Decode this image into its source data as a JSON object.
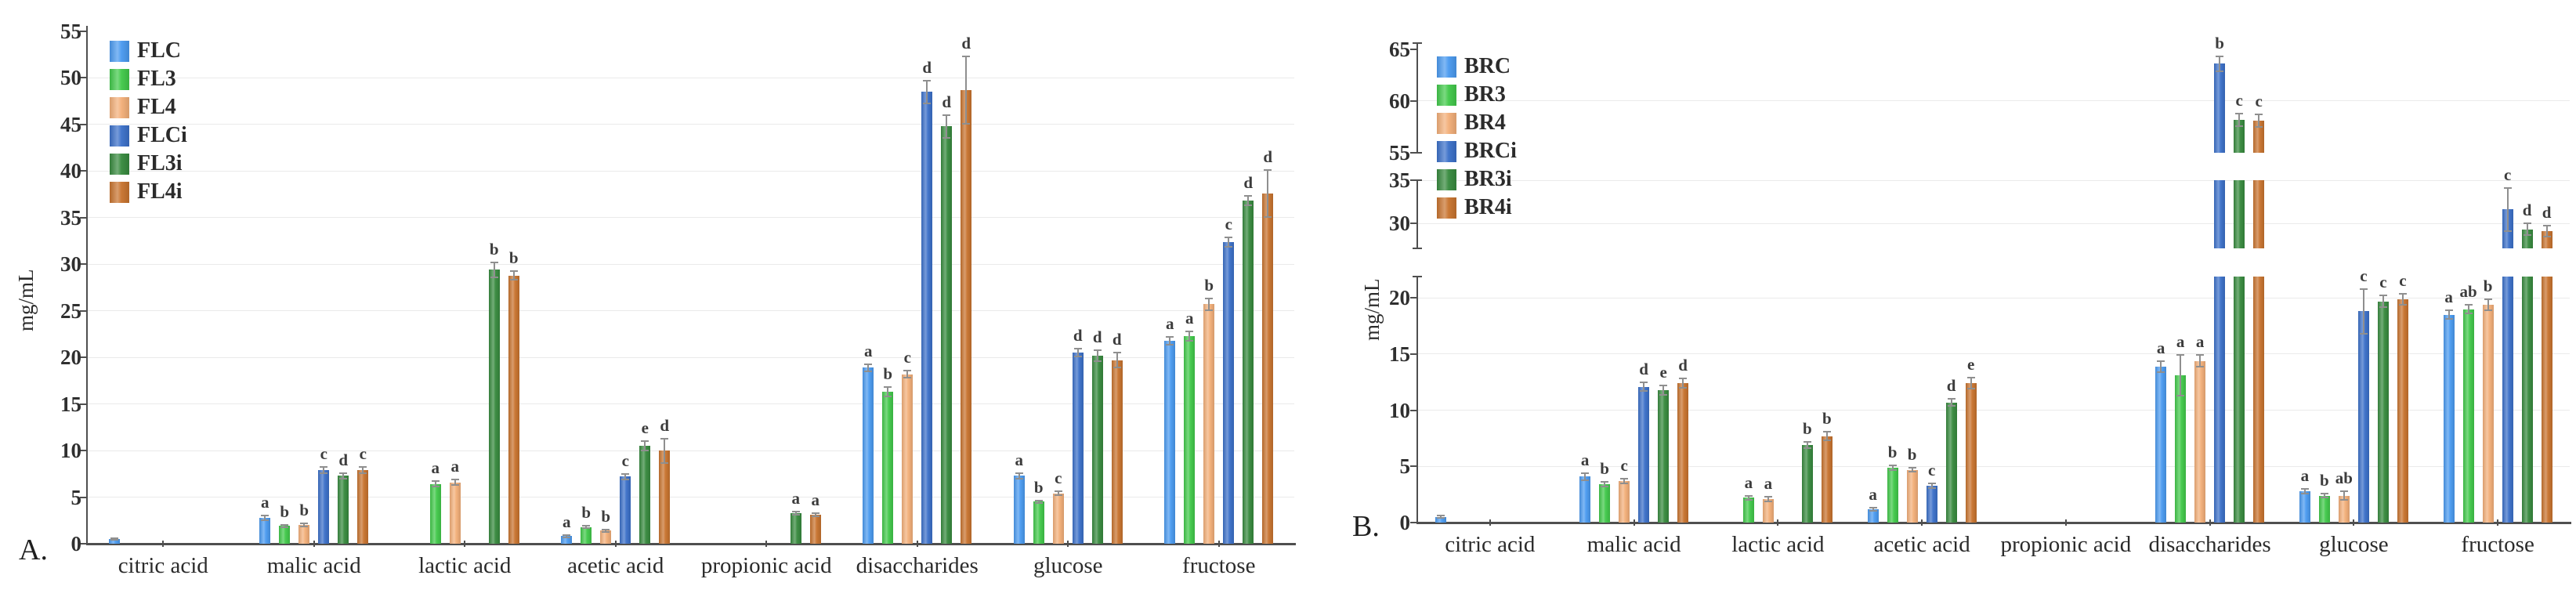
{
  "figure": {
    "background": "#ffffff",
    "ylabel": "mg/mL"
  },
  "chart_data": [
    {
      "type": "bar",
      "panel_label": "A.",
      "ylabel": "mg/mL",
      "legend_position": "top-left",
      "grid": true,
      "categories": [
        "citric acid",
        "malic acid",
        "lactic acid",
        "acetic acid",
        "propionic acid",
        "disaccharides",
        "glucose",
        "fructose"
      ],
      "axis": {
        "unit": "mg/mL",
        "ticks": [
          0,
          5,
          10,
          15,
          20,
          25,
          30,
          35,
          40,
          45,
          50,
          55
        ],
        "gridlines": [
          5,
          10,
          15,
          20,
          25,
          30,
          35,
          40,
          45,
          50
        ],
        "segments": [
          {
            "from": 0,
            "to": 55
          }
        ]
      },
      "series": [
        {
          "name": "FLC",
          "color": "#4a9af0",
          "values": [
            0.5,
            2.8,
            0,
            0.8,
            0,
            18.9,
            7.3,
            21.8
          ],
          "errors": [
            0.1,
            0.25,
            0,
            0.1,
            0,
            0.4,
            0.3,
            0.4
          ],
          "sig_labels": [
            "",
            "a",
            "",
            "a",
            "",
            "a",
            "a",
            "a"
          ]
        },
        {
          "name": "FL3",
          "color": "#41c94a",
          "values": [
            0,
            1.9,
            6.4,
            1.8,
            0,
            16.3,
            4.5,
            22.3
          ],
          "errors": [
            0,
            0.15,
            0.3,
            0.15,
            0,
            0.5,
            0.15,
            0.5
          ],
          "sig_labels": [
            "",
            "b",
            "a",
            "b",
            "",
            "b",
            "b",
            "a"
          ]
        },
        {
          "name": "FL4",
          "color": "#f3af79",
          "values": [
            0,
            2.0,
            6.6,
            1.4,
            0,
            18.2,
            5.4,
            25.7
          ],
          "errors": [
            0,
            0.15,
            0.3,
            0.15,
            0,
            0.4,
            0.2,
            0.6
          ],
          "sig_labels": [
            "",
            "b",
            "a",
            "b",
            "",
            "c",
            "c",
            "b"
          ]
        },
        {
          "name": "FLCi",
          "color": "#3b70c9",
          "values": [
            0,
            7.9,
            0,
            7.2,
            0,
            48.5,
            20.5,
            32.4
          ],
          "errors": [
            0,
            0.3,
            0,
            0.3,
            0,
            1.2,
            0.4,
            0.5
          ],
          "sig_labels": [
            "",
            "c",
            "",
            "c",
            "",
            "d",
            "d",
            "c"
          ]
        },
        {
          "name": "FL3i",
          "color": "#378a3e",
          "values": [
            0,
            7.3,
            29.4,
            10.5,
            3.3,
            44.8,
            20.2,
            36.8
          ],
          "errors": [
            0,
            0.3,
            0.8,
            0.5,
            0.15,
            1.2,
            0.6,
            0.5
          ],
          "sig_labels": [
            "",
            "d",
            "b",
            "e",
            "a",
            "d",
            "d",
            "d"
          ]
        },
        {
          "name": "FL4i",
          "color": "#c8732e",
          "values": [
            0,
            7.9,
            28.8,
            10.0,
            3.1,
            48.7,
            19.7,
            37.6
          ],
          "errors": [
            0,
            0.3,
            0.5,
            1.3,
            0.15,
            3.6,
            0.8,
            2.5
          ],
          "sig_labels": [
            "",
            "c",
            "b",
            "d",
            "a",
            "d",
            "d",
            "d"
          ]
        }
      ]
    },
    {
      "type": "bar",
      "panel_label": "B.",
      "ylabel": "mg/mL",
      "legend_position": "top-left",
      "grid": true,
      "axis_breaks": [
        [
          22,
          27
        ],
        [
          35,
          55
        ]
      ],
      "categories": [
        "citric acid",
        "malic acid",
        "lactic acid",
        "acetic acid",
        "propionic acid",
        "disaccharides",
        "glucose",
        "fructose"
      ],
      "axis": {
        "unit": "mg/mL",
        "ticks": [
          0,
          5,
          10,
          15,
          20,
          30,
          35,
          55,
          60,
          65
        ],
        "gridlines": [
          5,
          10,
          15,
          20,
          30,
          35,
          60
        ],
        "segments": [
          {
            "from": 0,
            "to": 21.9
          },
          {
            "from": 27.1,
            "to": 35
          },
          {
            "from": 55,
            "to": 65.6
          }
        ]
      },
      "series": [
        {
          "name": "BRC",
          "color": "#4a9af0",
          "values": [
            0.5,
            4.1,
            0,
            1.2,
            0,
            13.9,
            2.8,
            18.5
          ],
          "errors": [
            0.1,
            0.3,
            0,
            0.15,
            0,
            0.5,
            0.2,
            0.4
          ],
          "sig_labels": [
            "",
            "a",
            "",
            "a",
            "",
            "a",
            "a",
            "a"
          ]
        },
        {
          "name": "BR3",
          "color": "#41c94a",
          "values": [
            0,
            3.4,
            2.2,
            4.9,
            0,
            13.1,
            2.4,
            19.0
          ],
          "errors": [
            0,
            0.2,
            0.2,
            0.2,
            0,
            1.8,
            0.15,
            0.4
          ],
          "sig_labels": [
            "",
            "b",
            "a",
            "b",
            "",
            "a",
            "b",
            "ab"
          ]
        },
        {
          "name": "BR4",
          "color": "#f3af79",
          "values": [
            0,
            3.7,
            2.1,
            4.7,
            0,
            14.4,
            2.4,
            19.4
          ],
          "errors": [
            0,
            0.2,
            0.2,
            0.2,
            0,
            0.5,
            0.4,
            0.5
          ],
          "sig_labels": [
            "",
            "c",
            "a",
            "b",
            "",
            "a",
            "ab",
            "b"
          ]
        },
        {
          "name": "BRCi",
          "color": "#3b70c9",
          "values": [
            0,
            12.1,
            0,
            3.3,
            0,
            63.6,
            18.8,
            31.6
          ],
          "errors": [
            0,
            0.4,
            0,
            0.2,
            0,
            0.7,
            2.0,
            2.5
          ],
          "sig_labels": [
            "",
            "d",
            "",
            "c",
            "",
            "b",
            "c",
            "c"
          ]
        },
        {
          "name": "BR3i",
          "color": "#378a3e",
          "values": [
            0,
            11.8,
            6.9,
            10.7,
            0,
            58.2,
            19.7,
            29.3
          ],
          "errors": [
            0,
            0.4,
            0.3,
            0.3,
            0,
            0.6,
            0.5,
            0.7
          ],
          "sig_labels": [
            "",
            "e",
            "b",
            "d",
            "",
            "c",
            "c",
            "d"
          ]
        },
        {
          "name": "BR4i",
          "color": "#c8732e",
          "values": [
            0,
            12.4,
            7.7,
            12.4,
            0,
            58.1,
            19.9,
            29.1
          ],
          "errors": [
            0,
            0.4,
            0.4,
            0.5,
            0,
            0.6,
            0.5,
            0.6
          ],
          "sig_labels": [
            "",
            "d",
            "b",
            "e",
            "",
            "c",
            "c",
            "d"
          ]
        }
      ]
    }
  ]
}
